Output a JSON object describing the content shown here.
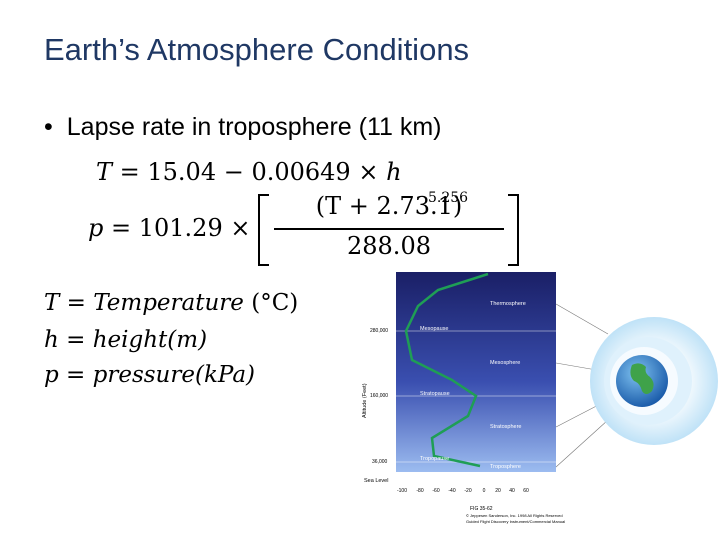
{
  "slide": {
    "title": "Earth’s Atmosphere Conditions",
    "bullet": "Lapse rate in troposphere (11 km)"
  },
  "equations": {
    "eq1": {
      "lhs": "T",
      "rhs_num": " = 15.04 − 0.00649 × ",
      "rhs_var": "h"
    },
    "eq2": {
      "lhs": "p",
      "rhs": " = 101.29 × ",
      "numerator": "(T + 2.73.1)",
      "denominator": "288.08",
      "exponent": "5.256"
    }
  },
  "definitions": [
    {
      "symbol": "T = ",
      "meaning": "Temperature",
      "unit": " (°C)"
    },
    {
      "symbol": "h = ",
      "meaning": "height",
      "unit": "(m)"
    },
    {
      "symbol": "p = ",
      "meaning": "pressure",
      "unit": "(kPa)"
    }
  ],
  "diagram": {
    "layers": [
      "Thermosphere",
      "Mesosphere",
      "Stratosphere",
      "Troposphere"
    ],
    "boundaries": [
      "Mesopause",
      "Stratopause",
      "Tropopause"
    ],
    "altitude_labels": [
      "280,000",
      "160,000",
      "36,000",
      "Sea Level"
    ],
    "axis_label": "Altitude (Feet)",
    "temp_ticks": [
      "-100",
      "-80",
      "-60",
      "-40",
      "-20",
      "0",
      "20",
      "40",
      "60"
    ],
    "fig_label": "FIG 35-62",
    "credit_1": "© Jeppesen Sanderson, Inc. 1998 All Rights Reserved",
    "credit_2": "Guided Flight Discovery Instrument/Commercial Manual",
    "colors": {
      "sky_top": "#1a1f66",
      "sky_bottom": "#7fa6e6",
      "profile": "#1f9e55"
    }
  }
}
